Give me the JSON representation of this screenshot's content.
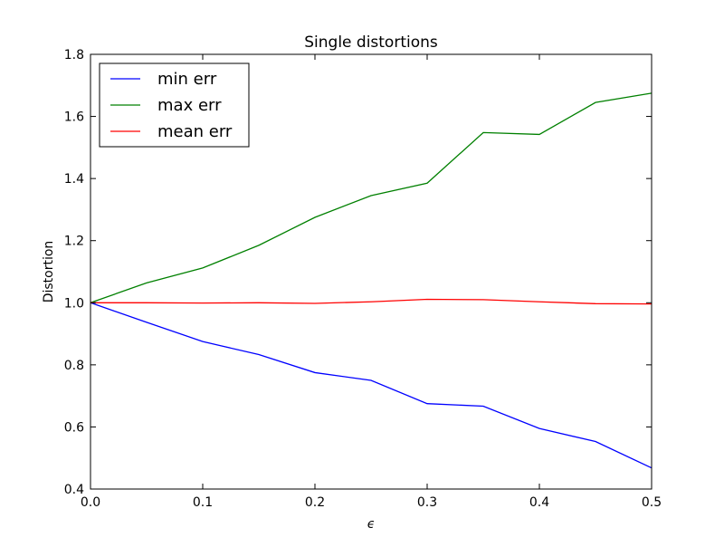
{
  "chart_data": {
    "type": "line",
    "title": "Single distortions",
    "xlabel": "ϵ",
    "ylabel": "Distortion",
    "xlim": [
      0.0,
      0.5
    ],
    "ylim": [
      0.4,
      1.8
    ],
    "x_ticks": [
      "0.0",
      "0.1",
      "0.2",
      "0.3",
      "0.4",
      "0.5"
    ],
    "y_ticks": [
      "0.4",
      "0.6",
      "0.8",
      "1.0",
      "1.2",
      "1.4",
      "1.6",
      "1.8"
    ],
    "x": [
      0.0,
      0.05,
      0.1,
      0.15,
      0.2,
      0.25,
      0.3,
      0.35,
      0.4,
      0.45,
      0.5
    ],
    "series": [
      {
        "name": "min err",
        "color": "#0000ff",
        "values": [
          1.0,
          0.937,
          0.875,
          0.833,
          0.775,
          0.75,
          0.675,
          0.667,
          0.595,
          0.553,
          0.468
        ]
      },
      {
        "name": "max err",
        "color": "#008000",
        "values": [
          1.0,
          1.064,
          1.112,
          1.185,
          1.275,
          1.345,
          1.385,
          1.548,
          1.542,
          1.645,
          1.675
        ]
      },
      {
        "name": "mean err",
        "color": "#ff0000",
        "values": [
          1.0,
          1.0,
          0.999,
          1.0,
          0.998,
          1.003,
          1.011,
          1.01,
          1.003,
          0.997,
          0.996
        ]
      }
    ],
    "grid": false,
    "legend_position": "top-left"
  }
}
